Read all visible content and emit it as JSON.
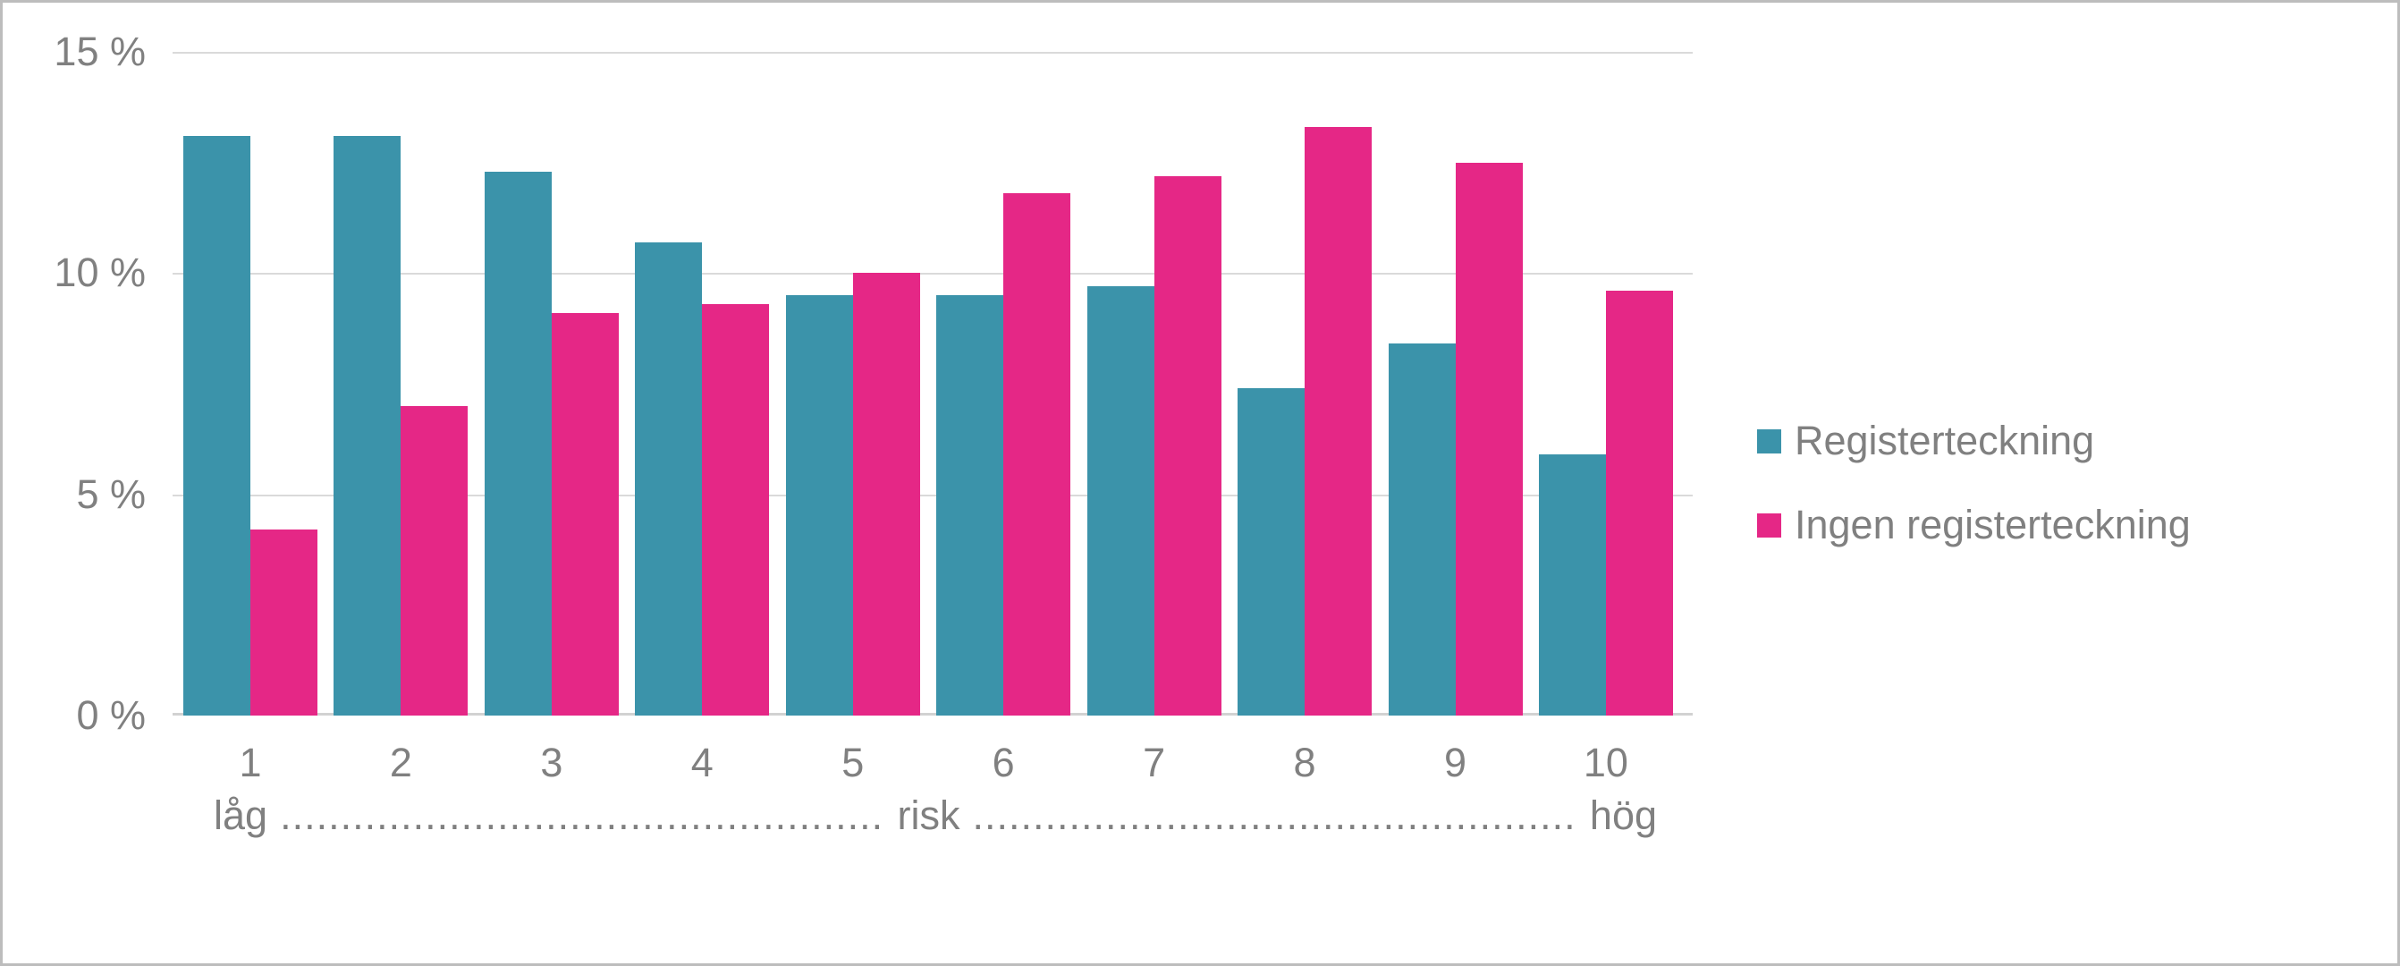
{
  "chart_data": {
    "type": "bar",
    "title": "",
    "categories": [
      "1",
      "2",
      "3",
      "4",
      "5",
      "6",
      "7",
      "8",
      "9",
      "10"
    ],
    "series": [
      {
        "name": "Registerteckning",
        "color": "#3B93AA",
        "values": [
          13.1,
          13.1,
          12.3,
          10.7,
          9.5,
          9.5,
          9.7,
          7.4,
          8.4,
          5.9
        ]
      },
      {
        "name": "Ingen registerteckning",
        "color": "#E52786",
        "values": [
          4.2,
          7.0,
          9.1,
          9.3,
          10.0,
          11.8,
          12.2,
          13.3,
          12.5,
          9.6
        ]
      }
    ],
    "ylim": [
      0,
      15
    ],
    "yticks": [
      {
        "value": 15,
        "label": "15 %"
      },
      {
        "value": 10,
        "label": "10 %"
      },
      {
        "value": 5,
        "label": "5 %"
      },
      {
        "value": 0,
        "label": "0 %"
      }
    ],
    "grid": true,
    "legend_position": "right",
    "xaxis_range_label": {
      "left": "låg",
      "middle": "risk",
      "right": "hög",
      "leader_left": "...........................................................................",
      "leader_right": "..........................................................................."
    }
  },
  "colors": {
    "series_teal": "#3B93AA",
    "series_pink": "#E52786",
    "text": "#808080",
    "gridline": "#DADADA",
    "axis_line": "#D2D2D2",
    "frame_border": "#BDBDBD",
    "background": "#FFFFFF"
  }
}
